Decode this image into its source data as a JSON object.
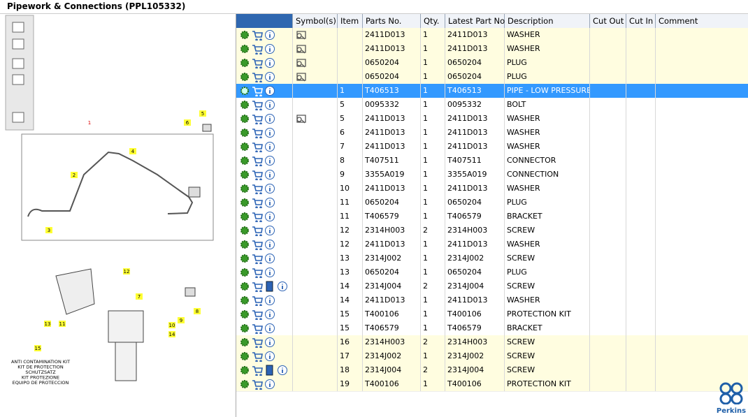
{
  "header": {
    "title": "Pipework & Connections (PPL105332)"
  },
  "table": {
    "columns": [
      "Symbol(s)",
      "Item",
      "Parts No.",
      "Qty.",
      "Latest Part No.",
      "Description",
      "Cut Out",
      "Cut In",
      "Comment"
    ],
    "rows": [
      {
        "item": null,
        "part": "2411D013",
        "qty": 1,
        "latest": "2411D013",
        "desc": "WASHER",
        "symbol": true,
        "highlight": "yellow"
      },
      {
        "item": null,
        "part": "2411D013",
        "qty": 1,
        "latest": "2411D013",
        "desc": "WASHER",
        "symbol": true,
        "highlight": "yellow"
      },
      {
        "item": null,
        "part": "0650204",
        "qty": 1,
        "latest": "0650204",
        "desc": "PLUG",
        "symbol": true,
        "highlight": "yellow"
      },
      {
        "item": null,
        "part": "0650204",
        "qty": 1,
        "latest": "0650204",
        "desc": "PLUG",
        "symbol": true,
        "highlight": "yellow"
      },
      {
        "item": 1,
        "part": "T406513",
        "qty": 1,
        "latest": "T406513",
        "desc": "PIPE - LOW PRESSURE F",
        "highlight": "selected"
      },
      {
        "item": 5,
        "part": "0095332",
        "qty": 1,
        "latest": "0095332",
        "desc": "BOLT"
      },
      {
        "item": 5,
        "part": "2411D013",
        "qty": 1,
        "latest": "2411D013",
        "desc": "WASHER",
        "symbol": true
      },
      {
        "item": 6,
        "part": "2411D013",
        "qty": 1,
        "latest": "2411D013",
        "desc": "WASHER"
      },
      {
        "item": 7,
        "part": "2411D013",
        "qty": 1,
        "latest": "2411D013",
        "desc": "WASHER"
      },
      {
        "item": 8,
        "part": "T407511",
        "qty": 1,
        "latest": "T407511",
        "desc": "CONNECTOR"
      },
      {
        "item": 9,
        "part": "3355A019",
        "qty": 1,
        "latest": "3355A019",
        "desc": "CONNECTION"
      },
      {
        "item": 10,
        "part": "2411D013",
        "qty": 1,
        "latest": "2411D013",
        "desc": "WASHER"
      },
      {
        "item": 11,
        "part": "0650204",
        "qty": 1,
        "latest": "0650204",
        "desc": "PLUG"
      },
      {
        "item": 11,
        "part": "T406579",
        "qty": 1,
        "latest": "T406579",
        "desc": "BRACKET"
      },
      {
        "item": 12,
        "part": "2314H003",
        "qty": 2,
        "latest": "2314H003",
        "desc": "SCREW"
      },
      {
        "item": 12,
        "part": "2411D013",
        "qty": 1,
        "latest": "2411D013",
        "desc": "WASHER"
      },
      {
        "item": 13,
        "part": "2314J002",
        "qty": 1,
        "latest": "2314J002",
        "desc": "SCREW"
      },
      {
        "item": 13,
        "part": "0650204",
        "qty": 1,
        "latest": "0650204",
        "desc": "PLUG"
      },
      {
        "item": 14,
        "part": "2314J004",
        "qty": 2,
        "latest": "2314J004",
        "desc": "SCREW",
        "book": true
      },
      {
        "item": 14,
        "part": "2411D013",
        "qty": 1,
        "latest": "2411D013",
        "desc": "WASHER"
      },
      {
        "item": 15,
        "part": "T400106",
        "qty": 1,
        "latest": "T400106",
        "desc": "PROTECTION KIT"
      },
      {
        "item": 15,
        "part": "T406579",
        "qty": 1,
        "latest": "T406579",
        "desc": "BRACKET"
      },
      {
        "item": 16,
        "part": "2314H003",
        "qty": 2,
        "latest": "2314H003",
        "desc": "SCREW",
        "highlight": "yellow"
      },
      {
        "item": 17,
        "part": "2314J002",
        "qty": 1,
        "latest": "2314J002",
        "desc": "SCREW",
        "highlight": "yellow"
      },
      {
        "item": 18,
        "part": "2314J004",
        "qty": 2,
        "latest": "2314J004",
        "desc": "SCREW",
        "book": true,
        "highlight": "yellow"
      },
      {
        "item": 19,
        "part": "T400106",
        "qty": 1,
        "latest": "T400106",
        "desc": "PROTECTION KIT",
        "highlight": "yellow"
      }
    ]
  },
  "diagram": {
    "callouts": [
      "1",
      "5",
      "6",
      "4",
      "2",
      "3",
      "12",
      "7",
      "8",
      "9",
      "10",
      "11",
      "13",
      "14",
      "15"
    ],
    "kit_label": [
      "ANTI CONTAMINATION KIT",
      "KIT DE PROTECTION",
      "SCHUTZSATZ",
      "KIT PROTEZIONE",
      "EQUIPO DE PROTECCION"
    ]
  },
  "logo": {
    "text": "Perkins"
  }
}
